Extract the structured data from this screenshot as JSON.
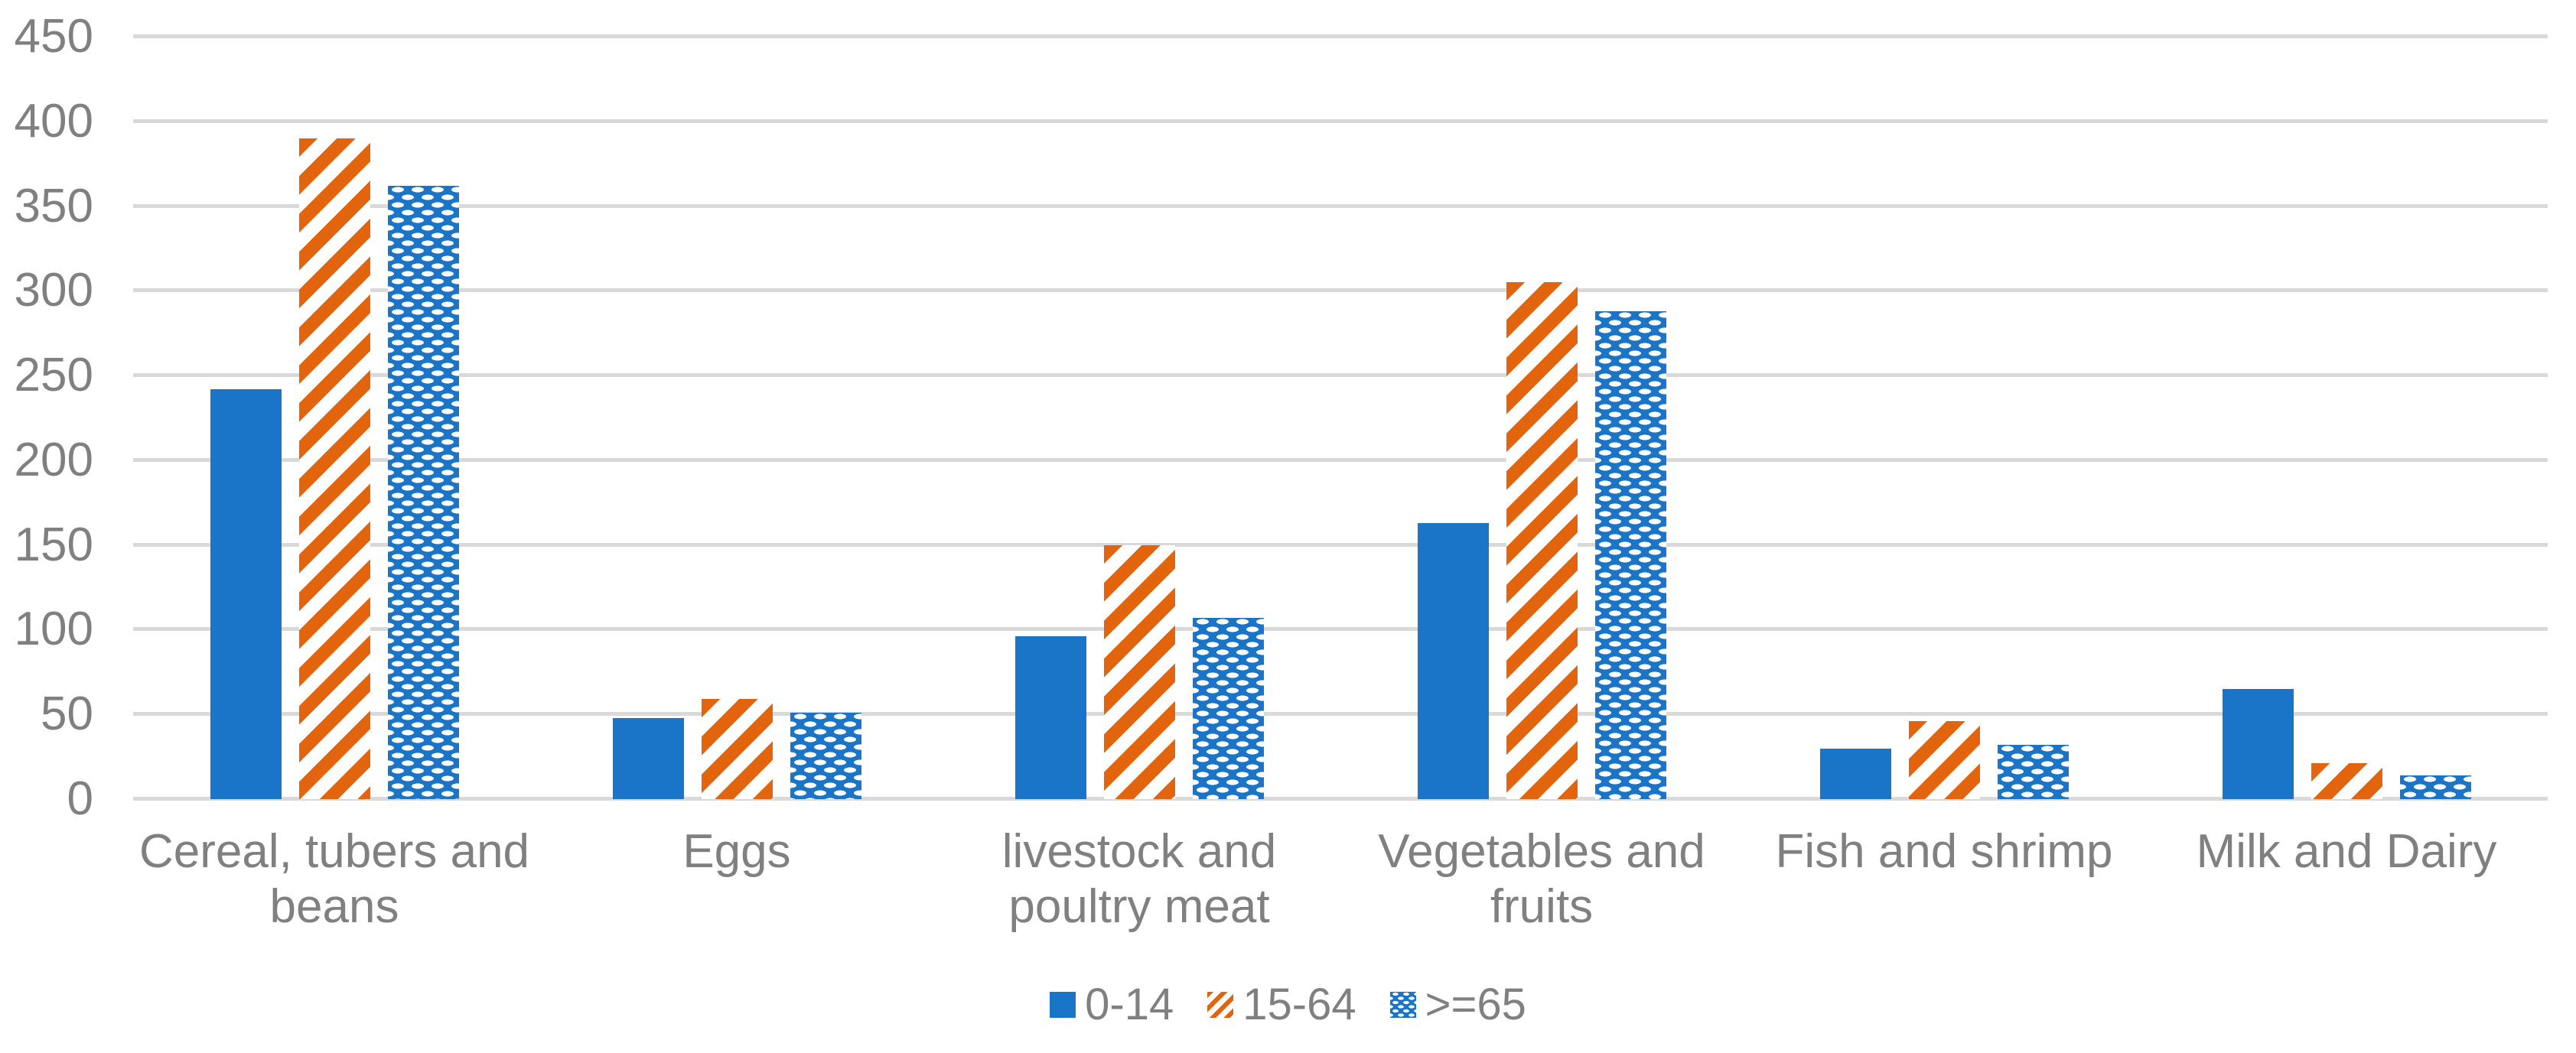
{
  "chart_data": {
    "type": "bar",
    "title": "",
    "xlabel": "",
    "ylabel": "",
    "categories": [
      "Cereal, tubers and beans",
      "Eggs",
      "livestock and poultry meat",
      "Vegetables and fruits",
      "Fish and shrimp",
      "Milk and Dairy"
    ],
    "series": [
      {
        "name": "0-14",
        "fill": "solid-blue",
        "values": [
          242,
          48,
          96,
          163,
          30,
          65
        ]
      },
      {
        "name": "15-64",
        "fill": "orange-diagonal-stripes",
        "values": [
          390,
          59,
          150,
          305,
          46,
          21
        ]
      },
      {
        "name": ">=65",
        "fill": "blue-white-dash-checker",
        "values": [
          362,
          51,
          107,
          288,
          32,
          14
        ]
      }
    ],
    "ylim": [
      0,
      450
    ],
    "yticks": [
      0,
      50,
      100,
      150,
      200,
      250,
      300,
      350,
      400,
      450
    ],
    "grid": "horizontal",
    "legend_position": "bottom",
    "colors": {
      "blue": "#1a75c9",
      "orange": "#e2650d",
      "gridline": "#d9d9d9",
      "text": "#808080",
      "background": "#ffffff"
    }
  }
}
